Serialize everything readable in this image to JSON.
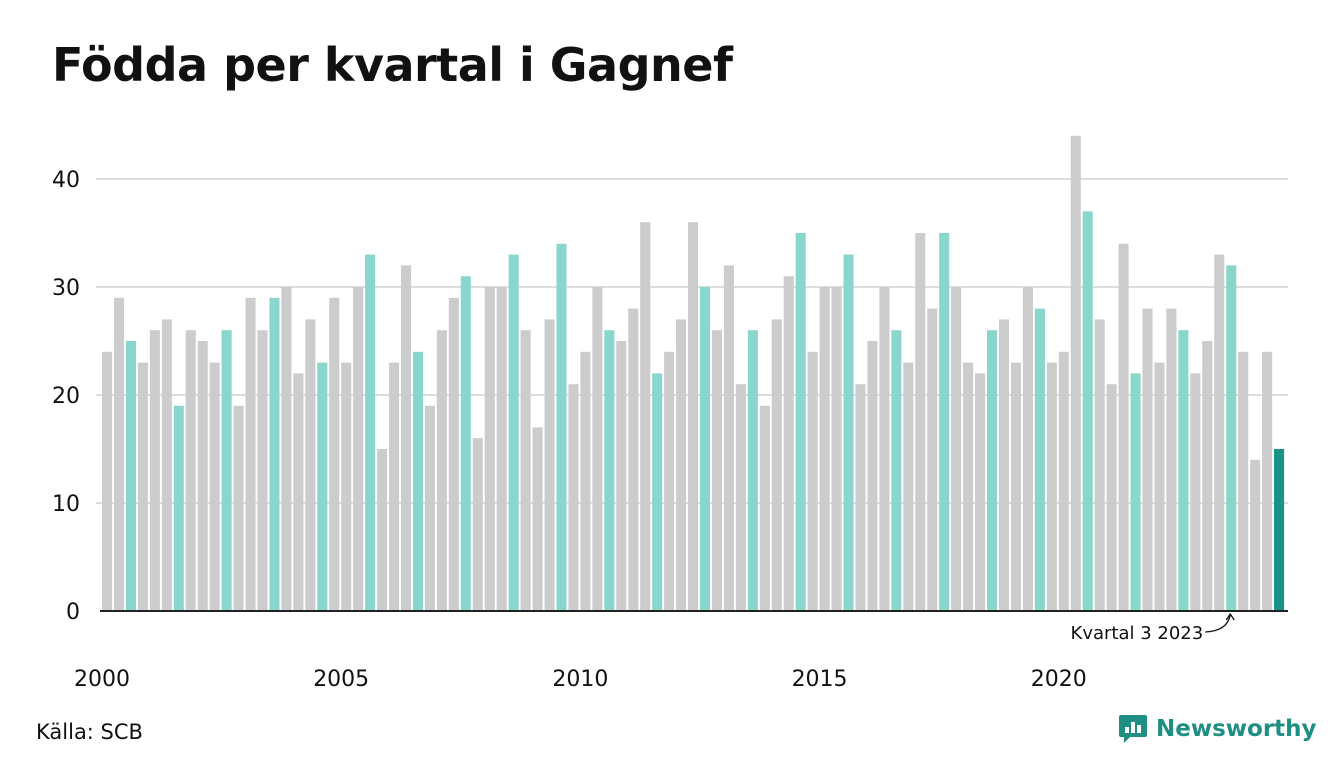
{
  "title": "Födda per kvartal i Gagnef",
  "source": "Källa: SCB",
  "brand": {
    "name": "Newsworthy",
    "icon": "newsworthy-logo-icon"
  },
  "colors": {
    "grey": "#cccccc",
    "q3": "#88d6cc",
    "highlight": "#1a9387",
    "grid": "#dddddd",
    "axis": "#222222",
    "brand": "#1f8f84"
  },
  "chart_data": {
    "type": "bar",
    "title": "Födda per kvartal i Gagnef",
    "ylim": [
      0,
      45
    ],
    "yticks": [
      0,
      10,
      20,
      30,
      40
    ],
    "xtick_labels": [
      "2000",
      "2005",
      "2010",
      "2015",
      "2020"
    ],
    "grid": true,
    "start_year": 2000,
    "values": [
      24,
      29,
      25,
      23,
      26,
      27,
      19,
      26,
      25,
      23,
      26,
      19,
      29,
      26,
      29,
      30,
      22,
      27,
      23,
      29,
      23,
      30,
      33,
      15,
      23,
      32,
      24,
      19,
      26,
      29,
      31,
      16,
      30,
      30,
      33,
      26,
      17,
      27,
      34,
      21,
      24,
      30,
      26,
      25,
      28,
      36,
      22,
      24,
      27,
      36,
      30,
      26,
      32,
      21,
      26,
      19,
      27,
      31,
      35,
      24,
      30,
      30,
      33,
      21,
      25,
      30,
      26,
      23,
      35,
      28,
      35,
      30,
      23,
      22,
      26,
      27,
      23,
      30,
      28,
      23,
      24,
      44,
      37,
      27,
      21,
      34,
      22,
      28,
      23,
      28,
      26,
      22,
      25,
      33,
      32,
      24,
      14,
      24,
      15
    ],
    "annotation": {
      "text": "Kvartal 3 2023",
      "target_index": 94
    },
    "highlight_index": 98
  }
}
